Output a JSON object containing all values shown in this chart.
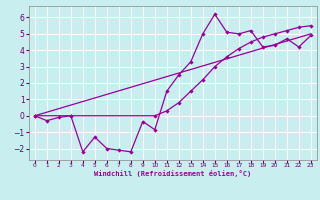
{
  "xlabel": "Windchill (Refroidissement éolien,°C)",
  "xlim": [
    -0.5,
    23.5
  ],
  "ylim": [
    -2.7,
    6.7
  ],
  "yticks": [
    -2,
    -1,
    0,
    1,
    2,
    3,
    4,
    5,
    6
  ],
  "xticks": [
    0,
    1,
    2,
    3,
    4,
    5,
    6,
    7,
    8,
    9,
    10,
    11,
    12,
    13,
    14,
    15,
    16,
    17,
    18,
    19,
    20,
    21,
    22,
    23
  ],
  "bg_color": "#c8eef0",
  "line_color": "#990099",
  "grid_color": "#ffffff",
  "line1_x": [
    0,
    1,
    2,
    3,
    4,
    5,
    6,
    7,
    8,
    9,
    10,
    11,
    12,
    13,
    14,
    15,
    16,
    17,
    18,
    19,
    20,
    21,
    22,
    23
  ],
  "line1_y": [
    0.0,
    -0.3,
    -0.1,
    0.0,
    -2.2,
    -1.3,
    -2.0,
    -2.1,
    -2.2,
    -0.35,
    -0.85,
    1.5,
    2.5,
    3.3,
    5.0,
    6.2,
    5.1,
    5.0,
    5.2,
    4.2,
    4.3,
    4.7,
    4.2,
    4.9
  ],
  "line2_x": [
    0,
    3,
    10,
    11,
    12,
    13,
    14,
    15,
    16,
    17,
    18,
    19,
    20,
    21,
    22,
    23
  ],
  "line2_y": [
    0.0,
    0.0,
    0.0,
    0.3,
    0.8,
    1.5,
    2.2,
    3.0,
    3.6,
    4.1,
    4.5,
    4.8,
    5.0,
    5.2,
    5.4,
    5.5
  ],
  "line3_x": [
    0,
    23
  ],
  "line3_y": [
    0.0,
    5.0
  ]
}
